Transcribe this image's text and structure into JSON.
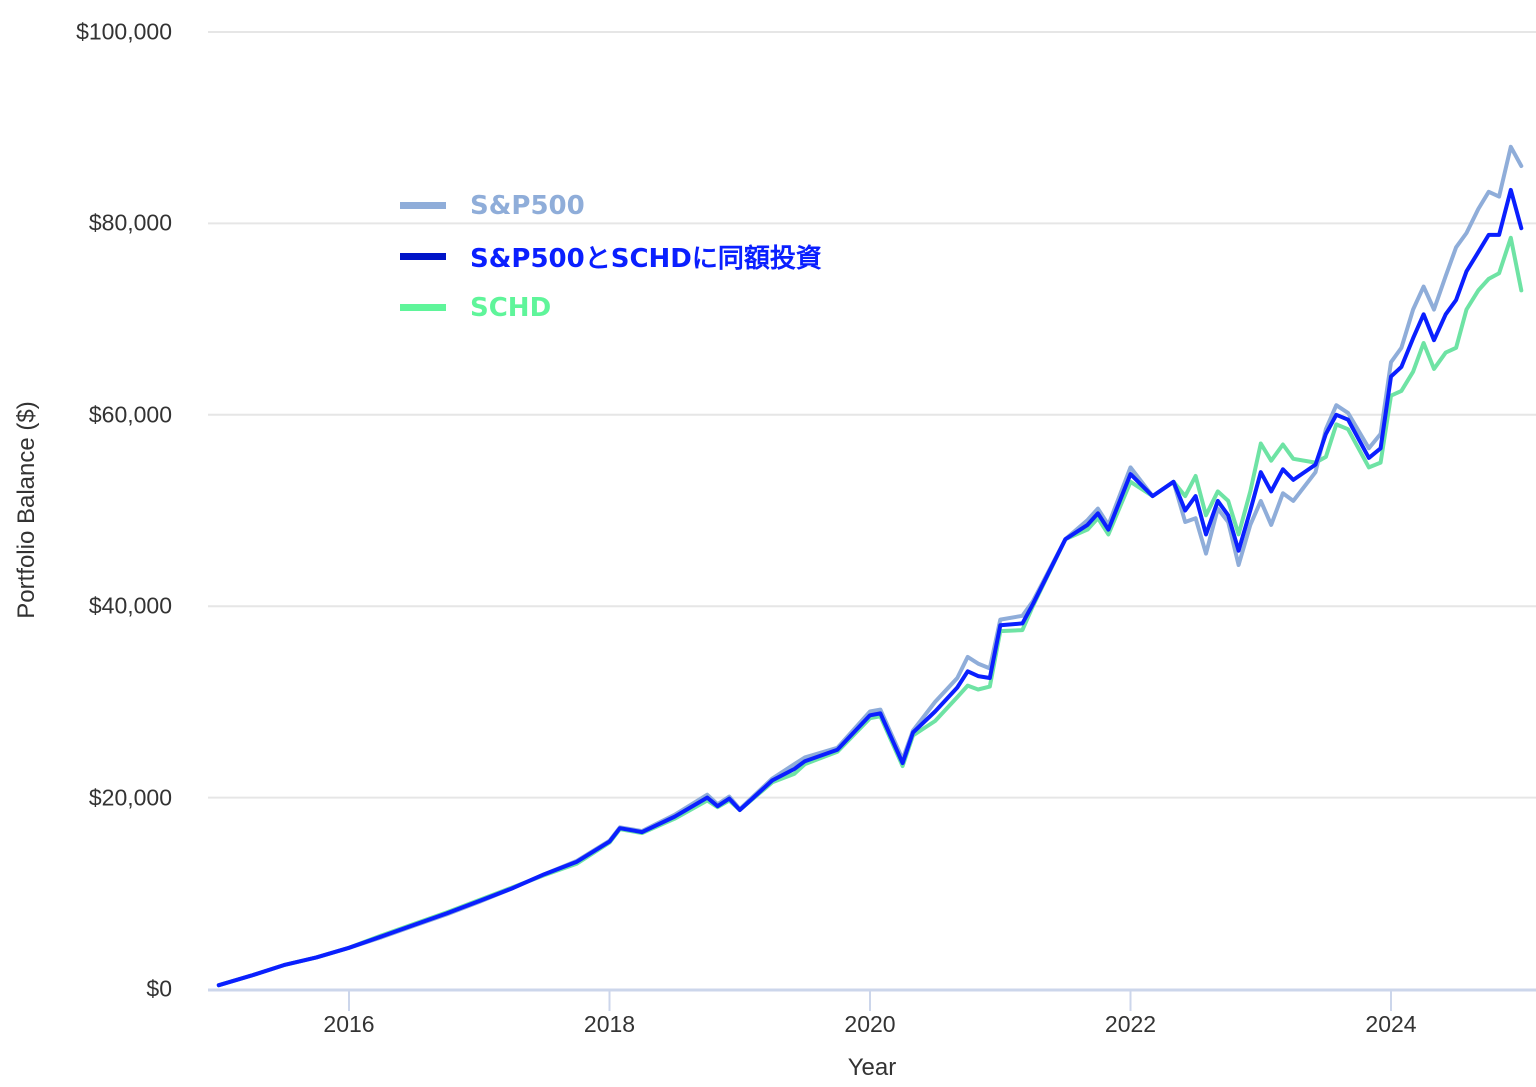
{
  "chart_data": {
    "type": "line",
    "title": "",
    "xlabel": "Year",
    "ylabel": "Portfolio Balance ($)",
    "ylim": [
      0,
      100000
    ],
    "xlim": [
      2014.95,
      2025.1
    ],
    "grid": true,
    "legend_position": "upper-left-inside",
    "y_ticks": [
      "$0",
      "$20,000",
      "$40,000",
      "$60,000",
      "$80,000",
      "$100,000"
    ],
    "y_tick_values": [
      0,
      20000,
      40000,
      60000,
      80000,
      100000
    ],
    "x_ticks": [
      "2016",
      "2018",
      "2020",
      "2022",
      "2024"
    ],
    "x_tick_values": [
      2016,
      2018,
      2020,
      2022,
      2024
    ],
    "x": [
      2015.0,
      2015.25,
      2015.5,
      2015.75,
      2016.0,
      2016.25,
      2016.5,
      2016.75,
      2017.0,
      2017.25,
      2017.5,
      2017.75,
      2018.0,
      2018.08,
      2018.25,
      2018.5,
      2018.75,
      2018.83,
      2018.92,
      2019.0,
      2019.25,
      2019.42,
      2019.5,
      2019.75,
      2020.0,
      2020.08,
      2020.25,
      2020.33,
      2020.5,
      2020.67,
      2020.75,
      2020.83,
      2020.92,
      2021.0,
      2021.17,
      2021.25,
      2021.5,
      2021.67,
      2021.75,
      2021.83,
      2022.0,
      2022.17,
      2022.33,
      2022.42,
      2022.5,
      2022.58,
      2022.67,
      2022.75,
      2022.83,
      2022.92,
      2023.0,
      2023.08,
      2023.17,
      2023.25,
      2023.42,
      2023.5,
      2023.58,
      2023.67,
      2023.83,
      2023.92,
      2024.0,
      2024.08,
      2024.17,
      2024.25,
      2024.33,
      2024.42,
      2024.5,
      2024.58,
      2024.67,
      2024.75,
      2024.83,
      2024.92,
      2025.0
    ],
    "series": [
      {
        "name": "S&P500",
        "color": "#8fadd9",
        "values": [
          400,
          1400,
          2500,
          3300,
          4300,
          5400,
          6600,
          7800,
          9100,
          10500,
          12000,
          13400,
          15500,
          16900,
          16500,
          18200,
          20300,
          19300,
          20100,
          18800,
          22000,
          23500,
          24200,
          25200,
          29000,
          29200,
          24000,
          27000,
          30000,
          32500,
          34700,
          34000,
          33500,
          38600,
          39000,
          40500,
          47000,
          49000,
          50200,
          48500,
          54500,
          51500,
          53000,
          48800,
          49200,
          45500,
          50200,
          48800,
          44300,
          48500,
          51000,
          48500,
          51800,
          51000,
          54000,
          58500,
          61000,
          60200,
          56500,
          58000,
          65500,
          67000,
          71000,
          73400,
          71000,
          74500,
          77500,
          79000,
          81500,
          83300,
          82800,
          88000,
          86000
        ]
      },
      {
        "name": "S&P500とSCHDに同額投資",
        "color": "#0a1fff",
        "values": [
          400,
          1400,
          2500,
          3300,
          4300,
          5500,
          6700,
          7900,
          9200,
          10500,
          12000,
          13300,
          15400,
          16800,
          16400,
          18000,
          20000,
          19100,
          19900,
          18700,
          21800,
          23000,
          23800,
          25000,
          28600,
          28800,
          23600,
          26800,
          29000,
          31500,
          33200,
          32700,
          32500,
          38000,
          38200,
          40200,
          47000,
          48500,
          49700,
          48000,
          53800,
          51500,
          53000,
          50000,
          51500,
          47500,
          51000,
          49500,
          45800,
          50000,
          54000,
          52000,
          54300,
          53200,
          54800,
          58000,
          60000,
          59500,
          55500,
          56500,
          64000,
          65000,
          68000,
          70500,
          67800,
          70500,
          72000,
          75000,
          77000,
          78800,
          78800,
          83500,
          79500
        ]
      },
      {
        "name": "SCHD",
        "color": "#5ff59a",
        "values": [
          400,
          1400,
          2500,
          3300,
          4300,
          5600,
          6800,
          8000,
          9300,
          10600,
          11900,
          13100,
          15300,
          16700,
          16300,
          17800,
          19700,
          19000,
          19700,
          18700,
          21600,
          22500,
          23500,
          24800,
          28300,
          28500,
          23300,
          26500,
          28000,
          30500,
          31700,
          31300,
          31600,
          37400,
          37500,
          40000,
          47000,
          48000,
          49200,
          47500,
          53000,
          51500,
          53000,
          51500,
          53600,
          49500,
          52000,
          51000,
          47500,
          52000,
          57000,
          55200,
          56900,
          55400,
          55000,
          55600,
          59000,
          58500,
          54500,
          55000,
          62000,
          62500,
          64500,
          67500,
          64800,
          66500,
          67000,
          71000,
          73000,
          74200,
          74800,
          78500,
          73000
        ]
      }
    ]
  },
  "axes": {
    "y_label": "Portfolio Balance ($)",
    "x_label": "Year"
  },
  "legend": {
    "items": [
      {
        "label": "S&P500",
        "color": "#8fadd9"
      },
      {
        "label": "S&P500とSCHDに同額投資",
        "color": "#0a1fff"
      },
      {
        "label": "SCHD",
        "color": "#5ff59a"
      }
    ]
  },
  "colors": {
    "grid": "#e6e6e6",
    "axis": "#ccd6eb",
    "text": "#333333"
  }
}
